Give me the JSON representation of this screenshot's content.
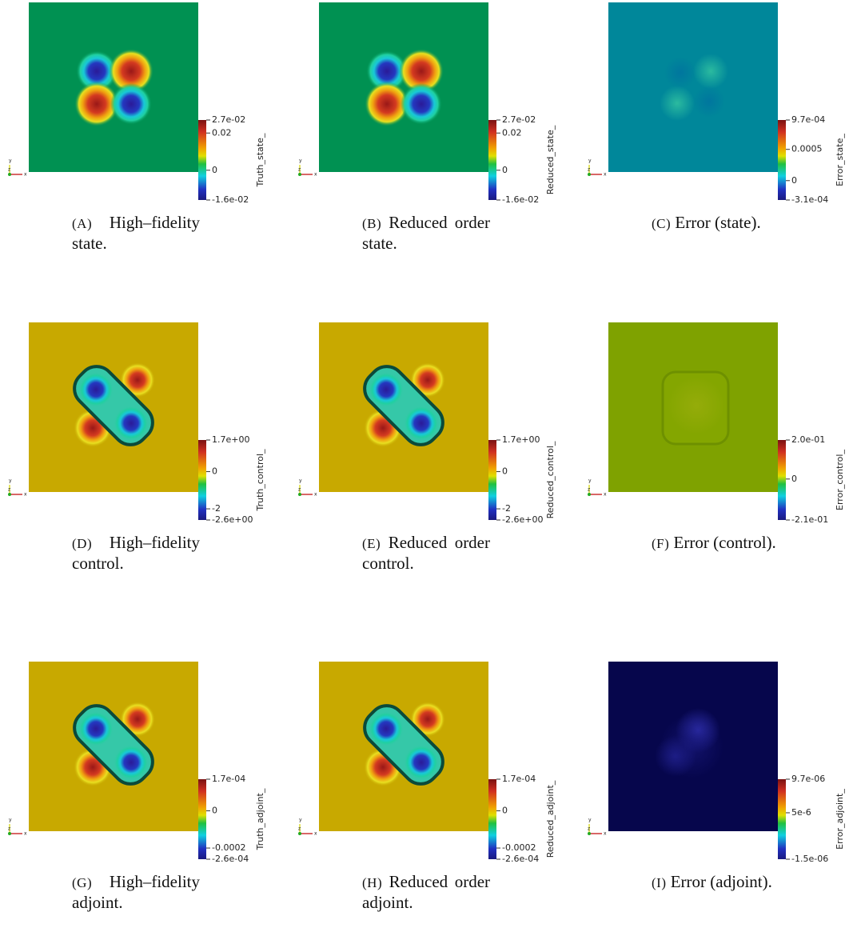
{
  "triad": [
    "y",
    "z",
    "x"
  ],
  "panels": [
    {
      "colorbar_title": "Truth_state_",
      "ticks": [
        "2.7e-02",
        "0.02",
        "0",
        "-1.6e-02"
      ],
      "caption_tag": "(A)",
      "caption": "High–fidelity state."
    },
    {
      "colorbar_title": "Reduced_state_",
      "ticks": [
        "2.7e-02",
        "0.02",
        "0",
        "-1.6e-02"
      ],
      "caption_tag": "(B)",
      "caption": "Reduced order state."
    },
    {
      "colorbar_title": "Error_state_",
      "ticks": [
        "9.7e-04",
        "0.0005",
        "0",
        "-3.1e-04"
      ],
      "caption_tag": "(C)",
      "caption": "Error (state)."
    },
    {
      "colorbar_title": "Truth_control_",
      "ticks": [
        "1.7e+00",
        "0",
        "-2",
        "-2.6e+00"
      ],
      "caption_tag": "(D)",
      "caption": "High–fidelity control."
    },
    {
      "colorbar_title": "Reduced_control_",
      "ticks": [
        "1.7e+00",
        "0",
        "-2",
        "-2.6e+00"
      ],
      "caption_tag": "(E)",
      "caption": "Reduced order control."
    },
    {
      "colorbar_title": "Error_control_",
      "ticks": [
        "2.0e-01",
        "0",
        "-2.1e-01"
      ],
      "caption_tag": "(F)",
      "caption": "Error (control)."
    },
    {
      "colorbar_title": "Truth_adjoint_",
      "ticks": [
        "1.7e-04",
        "0",
        "-0.0002",
        "-2.6e-04"
      ],
      "caption_tag": "(G)",
      "caption": "High–fidelity adjoint."
    },
    {
      "colorbar_title": "Reduced_adjoint_",
      "ticks": [
        "1.7e-04",
        "0",
        "-0.0002",
        "-2.6e-04"
      ],
      "caption_tag": "(H)",
      "caption": "Reduced order adjoint."
    },
    {
      "colorbar_title": "Error_adjoint_",
      "ticks": [
        "9.7e-06",
        "5e-6",
        "-1.5e-06"
      ],
      "caption_tag": "(I)",
      "caption": "Error (adjoint)."
    }
  ]
}
